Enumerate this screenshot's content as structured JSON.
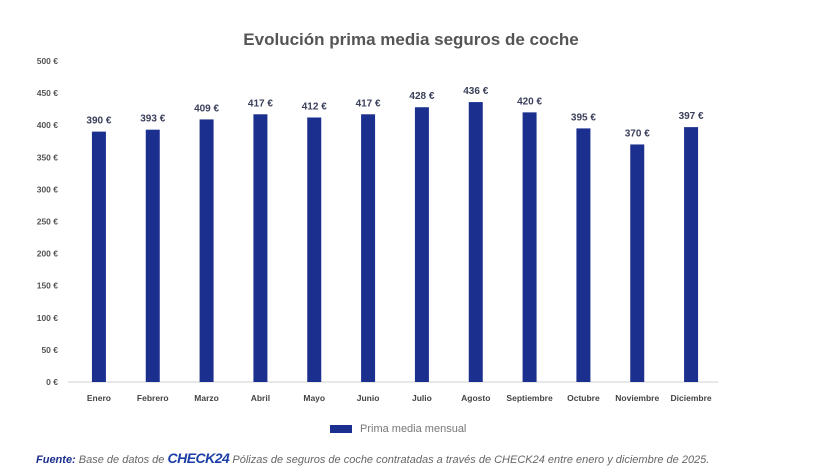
{
  "chart_data": {
    "type": "bar",
    "title": "Evolución prima media seguros de coche",
    "xlabel": "",
    "ylabel": "",
    "ylim": [
      0,
      500
    ],
    "yticks": [
      0,
      50,
      100,
      150,
      200,
      250,
      300,
      350,
      400,
      450,
      500
    ],
    "ytick_labels": [
      "0 €",
      "50 €",
      "100 €",
      "150 €",
      "200 €",
      "250 €",
      "300 €",
      "350 €",
      "400 €",
      "450 €",
      "500 €"
    ],
    "categories": [
      "Enero",
      "Febrero",
      "Marzo",
      "Abril",
      "Mayo",
      "Junio",
      "Julio",
      "Agosto",
      "Septiembre",
      "Octubre",
      "Noviembre",
      "Diciembre"
    ],
    "series": [
      {
        "name": "Prima media mensual",
        "color": "#1b2f8f",
        "values": [
          390,
          393,
          409,
          417,
          412,
          417,
          428,
          436,
          420,
          395,
          370,
          397
        ],
        "labels": [
          "390 €",
          "393 €",
          "409 €",
          "417 €",
          "412 €",
          "417 €",
          "428 €",
          "436 €",
          "420 €",
          "395 €",
          "370 €",
          "397 €"
        ]
      }
    ],
    "grid": false,
    "legend_position": "bottom-center"
  },
  "legend": {
    "label": "Prima media mensual"
  },
  "footer": {
    "source_label": "Fuente:",
    "text_before_logo": "Base de datos de",
    "logo": "CHECK24",
    "text_after_logo": "Pólizas de seguros de coche contratadas a través de CHECK24 entre enero y diciembre de 2025."
  }
}
